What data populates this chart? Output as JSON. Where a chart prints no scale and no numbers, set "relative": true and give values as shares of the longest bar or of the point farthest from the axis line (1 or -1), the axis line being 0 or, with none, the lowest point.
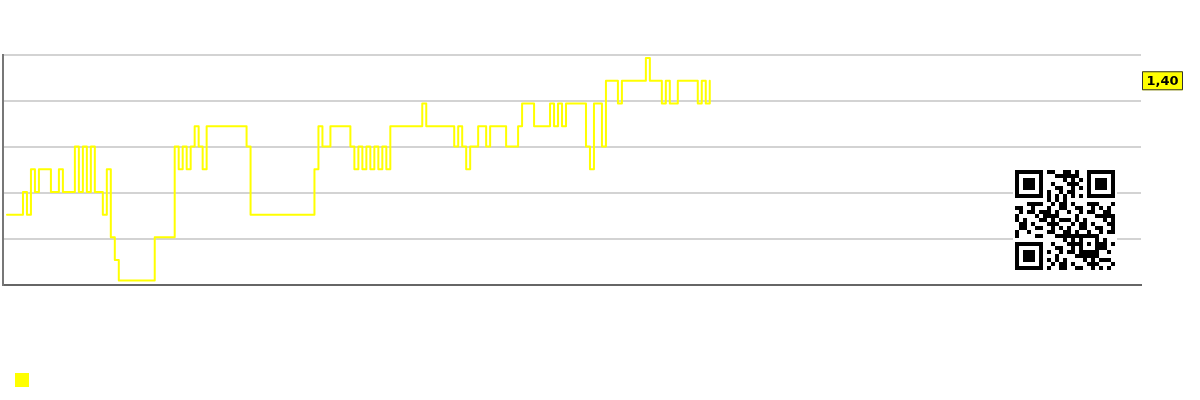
{
  "chart_data": {
    "type": "step",
    "relative": true,
    "grid": "y",
    "annotations": [
      {
        "text": "1,40",
        "y": 0.9
      }
    ],
    "categories": [
      null,
      null,
      null,
      null,
      null,
      null,
      null,
      null,
      null,
      null,
      null,
      null,
      null,
      null,
      null,
      null,
      null,
      null,
      null,
      null,
      null,
      null,
      null,
      null,
      null,
      null,
      null,
      null,
      null,
      null,
      null,
      null,
      null,
      null,
      null,
      null,
      null,
      null,
      null,
      null,
      null,
      null,
      null,
      null,
      null,
      null,
      null,
      null,
      null,
      null,
      null,
      null,
      null,
      null,
      null,
      null,
      null,
      null,
      null,
      null,
      null,
      null,
      null,
      null,
      null,
      null,
      null,
      null,
      null,
      null,
      null,
      null,
      null,
      null,
      null,
      null,
      null,
      null,
      null,
      null,
      null,
      null,
      null,
      null,
      null,
      null,
      null,
      null,
      null,
      null,
      null,
      null,
      null,
      null,
      null,
      null,
      null,
      null,
      null,
      null,
      null,
      null,
      null,
      null,
      null,
      null,
      null,
      null,
      null,
      null,
      null,
      null,
      null,
      null,
      null,
      null,
      null,
      null,
      null,
      null,
      null,
      null,
      null,
      null,
      null,
      null,
      null,
      null,
      null,
      null,
      null,
      null,
      null,
      null,
      null,
      null,
      null,
      null,
      null,
      null,
      null,
      null,
      null,
      null,
      null,
      null,
      null,
      null,
      null,
      null,
      null,
      null,
      null,
      null,
      null,
      null,
      null,
      null,
      null,
      null,
      null,
      null,
      null,
      null,
      null,
      null,
      null,
      null,
      null,
      null,
      null,
      null,
      null,
      null,
      null,
      null,
      null,
      null,
      null,
      null,
      null,
      null,
      null,
      null,
      null,
      null,
      null,
      null,
      null,
      null,
      null,
      null,
      null,
      null,
      null,
      null,
      null,
      null,
      null,
      null,
      null,
      null,
      null,
      null,
      null,
      null,
      null,
      null,
      null,
      null,
      null,
      null,
      null,
      null,
      null,
      null,
      null,
      null,
      null,
      null,
      null,
      null,
      null,
      null,
      null,
      null,
      null,
      null,
      null,
      null,
      null,
      null,
      null,
      null,
      null,
      null,
      null,
      null,
      null,
      null,
      null,
      null,
      null,
      null,
      null,
      null,
      null,
      null,
      null,
      null,
      null,
      null,
      null,
      null,
      null,
      null,
      null,
      null,
      null,
      null,
      null,
      null,
      null,
      null,
      null,
      null,
      null,
      null,
      null,
      null,
      null,
      null,
      null,
      null,
      null,
      null,
      null,
      null,
      null,
      null,
      null,
      null,
      null,
      null,
      null,
      null
    ],
    "series": [
      {
        "color": "#ffff00",
        "values": [
          null,
          0.31,
          0.31,
          0.31,
          0.31,
          0.41,
          0.31,
          0.51,
          0.41,
          0.51,
          0.51,
          0.51,
          0.41,
          0.41,
          0.51,
          0.41,
          0.41,
          0.41,
          0.61,
          0.41,
          0.61,
          0.41,
          0.61,
          0.41,
          0.41,
          0.31,
          0.51,
          0.21,
          0.11,
          0.02,
          0.02,
          0.02,
          0.02,
          0.02,
          0.02,
          0.02,
          0.02,
          0.02,
          0.21,
          0.21,
          0.21,
          0.21,
          0.21,
          0.61,
          0.51,
          0.61,
          0.51,
          0.61,
          0.7,
          0.61,
          0.51,
          0.7,
          0.7,
          0.7,
          0.7,
          0.7,
          0.7,
          0.7,
          0.7,
          0.7,
          0.7,
          0.61,
          0.31,
          0.31,
          0.31,
          0.31,
          0.31,
          0.31,
          0.31,
          0.31,
          0.31,
          0.31,
          0.31,
          0.31,
          0.31,
          0.31,
          0.31,
          0.31,
          0.51,
          0.7,
          0.61,
          0.61,
          0.7,
          0.7,
          0.7,
          0.7,
          0.7,
          0.61,
          0.51,
          0.61,
          0.51,
          0.61,
          0.51,
          0.61,
          0.51,
          0.61,
          0.51,
          0.7,
          0.7,
          0.7,
          0.7,
          0.7,
          0.7,
          0.7,
          0.7,
          0.8,
          0.7,
          0.7,
          0.7,
          0.7,
          0.7,
          0.7,
          0.7,
          0.61,
          0.7,
          0.61,
          0.51,
          0.61,
          0.61,
          0.7,
          0.7,
          0.61,
          0.7,
          0.7,
          0.7,
          0.7,
          0.61,
          0.61,
          0.61,
          0.7,
          0.8,
          0.8,
          0.8,
          0.7,
          0.7,
          0.7,
          0.7,
          0.8,
          0.7,
          0.8,
          0.7,
          0.8,
          0.8,
          0.8,
          0.8,
          0.8,
          0.61,
          0.51,
          0.8,
          0.8,
          0.61,
          0.9,
          0.9,
          0.9,
          0.8,
          0.9,
          0.9,
          0.9,
          0.9,
          0.9,
          0.9,
          1,
          0.9,
          0.9,
          0.9,
          0.8,
          0.9,
          0.8,
          0.8,
          0.9,
          0.9,
          0.9,
          0.9,
          0.9,
          0.8,
          0.9,
          0.8,
          0.9,
          null,
          null,
          null,
          null,
          null,
          null,
          null,
          null,
          null,
          null,
          null,
          null,
          null,
          null,
          null,
          null,
          null,
          null,
          null,
          null,
          null,
          null,
          null,
          null,
          null,
          null,
          null,
          null,
          null,
          null,
          null,
          null,
          null,
          null,
          null,
          null,
          null,
          null,
          null,
          null,
          null,
          null,
          null,
          null,
          null,
          null,
          null,
          null,
          null,
          null,
          null,
          null,
          null,
          null,
          null,
          null,
          null,
          null,
          null,
          null,
          null,
          null,
          null,
          null,
          null,
          null,
          null,
          null,
          null,
          null,
          null,
          null,
          null,
          null,
          null,
          null,
          null,
          null,
          null,
          null,
          null,
          null,
          null,
          null,
          null,
          null,
          null,
          null,
          null,
          null,
          null,
          null,
          null,
          null,
          null,
          null,
          null,
          null,
          null,
          null,
          null,
          null,
          null,
          null,
          null,
          null,
          null,
          null
        ]
      }
    ]
  }
}
